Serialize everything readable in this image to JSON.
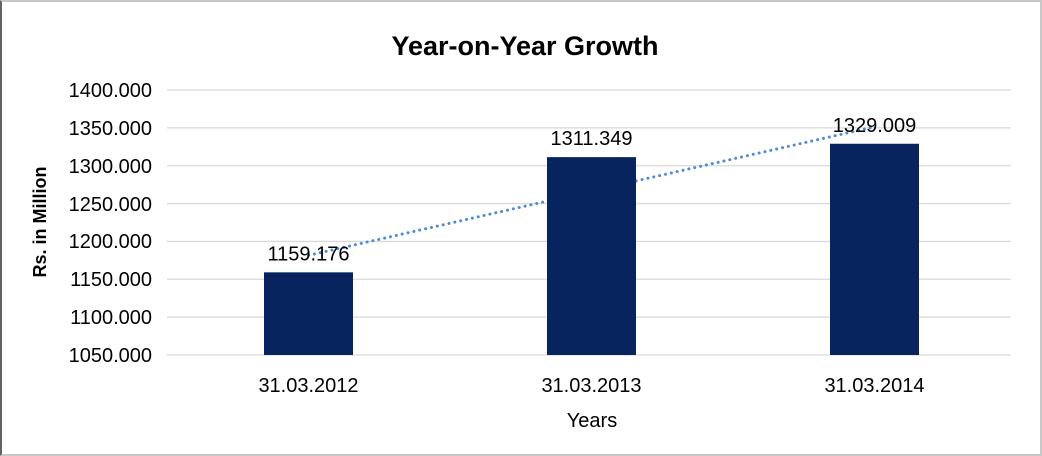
{
  "chart_data": {
    "type": "bar",
    "title": "Year-on-Year Growth",
    "xlabel": "Years",
    "ylabel": "Rs. in Million",
    "categories": [
      "31.03.2012",
      "31.03.2013",
      "31.03.2014"
    ],
    "values": [
      1159.176,
      1311.349,
      1329.009
    ],
    "data_labels": [
      "1159.176",
      "1311.349",
      "1329.009"
    ],
    "yticks": [
      "1400.000",
      "1350.000",
      "1300.000",
      "1250.000",
      "1200.000",
      "1150.000",
      "1100.000",
      "1050.000"
    ],
    "ylim": [
      1050,
      1400
    ],
    "grid": true,
    "legend": "none",
    "trendline": {
      "type": "linear",
      "style": "dotted"
    },
    "colors": {
      "bar": "#08245F",
      "trendline": "#4F8BD5",
      "gridline": "#D9D9D9",
      "text": "#000000",
      "frame": "#C8C8C8"
    }
  }
}
